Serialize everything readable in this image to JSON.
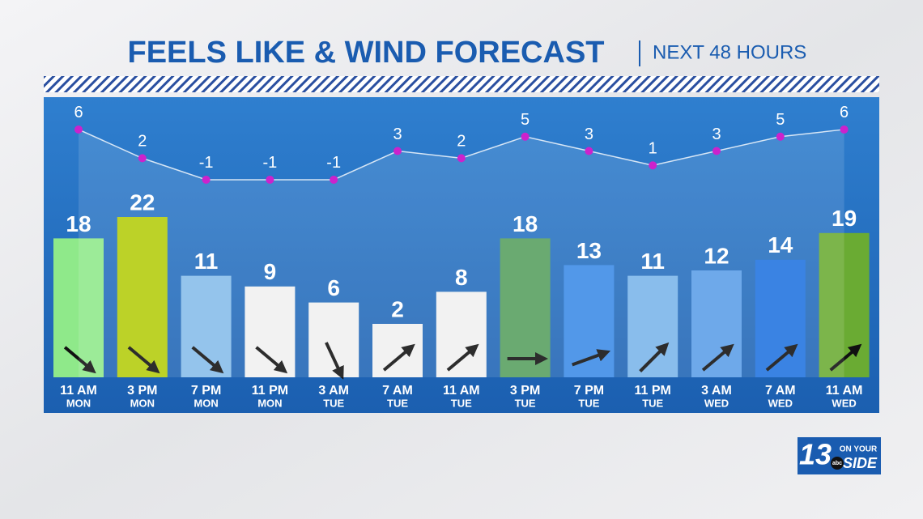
{
  "chart_data": {
    "type": "bar-line",
    "title": "FEELS LIKE & WIND FORECAST",
    "subtitle": "NEXT 48 HOURS",
    "categories": [
      "11 AM",
      "3 PM",
      "7 PM",
      "11 PM",
      "3 AM",
      "7 AM",
      "11 AM",
      "3 PM",
      "7 PM",
      "11 PM",
      "3 AM",
      "7 AM",
      "11 AM"
    ],
    "category_days": [
      "MON",
      "MON",
      "MON",
      "MON",
      "TUE",
      "TUE",
      "TUE",
      "TUE",
      "TUE",
      "TUE",
      "WED",
      "WED",
      "WED"
    ],
    "series": [
      {
        "type": "bar",
        "values": [
          18,
          22,
          11,
          9,
          6,
          2,
          8,
          18,
          13,
          11,
          12,
          14,
          19
        ],
        "colors": [
          "#8fe98a",
          "#b3cc0b",
          "#86bcea",
          "#f1f1f1",
          "#f1f1f1",
          "#f1f1f1",
          "#f1f1f1",
          "#569f5e",
          "#3b8ae6",
          "#79b4ea",
          "#5a9ee8",
          "#1f72e0",
          "#6aab33"
        ],
        "wind_arrow_angles": [
          40,
          40,
          40,
          40,
          65,
          -40,
          -40,
          0,
          -20,
          -45,
          -40,
          -40,
          -40
        ]
      },
      {
        "type": "line",
        "axis": "y2",
        "color": "#ffffff",
        "marker_color": "#cc22cc",
        "values": [
          6,
          2,
          -1,
          -1,
          -1,
          3,
          2,
          5,
          3,
          1,
          3,
          5,
          6
        ]
      }
    ],
    "ylim": [
      -8,
      30
    ],
    "y2lim": [
      -10,
      10
    ],
    "logo": {
      "number": "13",
      "line1": "ON YOUR",
      "line2": "SIDE",
      "badge": "abc"
    }
  }
}
